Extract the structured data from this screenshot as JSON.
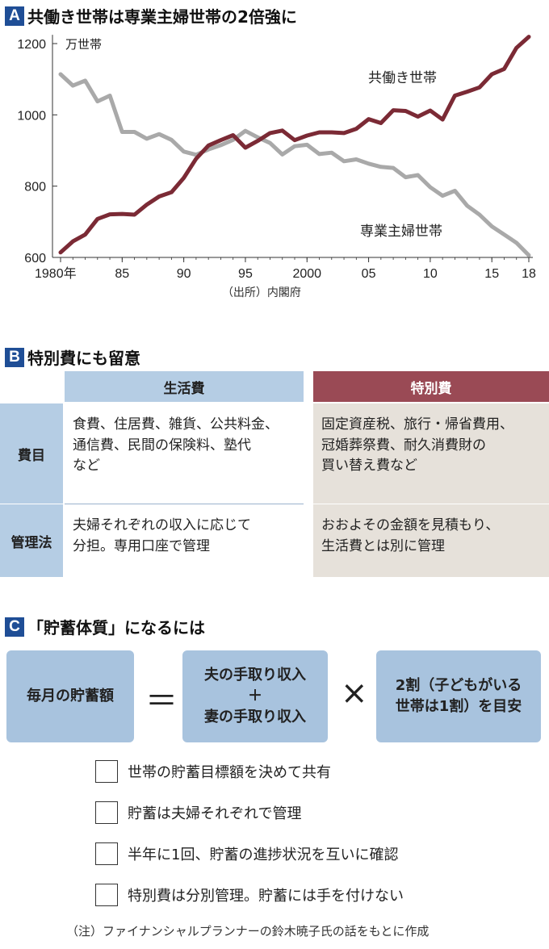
{
  "sections": {
    "a": {
      "badge": "A",
      "title": "共働き世帯は専業主婦世帯の2倍強に"
    },
    "b": {
      "badge": "B",
      "title": "特別費にも留意"
    },
    "c": {
      "badge": "C",
      "title": "「貯蓄体質」になるには"
    }
  },
  "chart_data": {
    "type": "line",
    "title": "共働き世帯は専業主婦世帯の2倍強に",
    "ylabel": "万世帯",
    "ylim": [
      600,
      1220
    ],
    "yticks": [
      600,
      800,
      1000,
      1200
    ],
    "xlim": [
      1980,
      2018
    ],
    "xticks": [
      {
        "value": 1980,
        "label": "1980年"
      },
      {
        "value": 1985,
        "label": "85"
      },
      {
        "value": 1990,
        "label": "90"
      },
      {
        "value": 1995,
        "label": "95"
      },
      {
        "value": 2000,
        "label": "2000"
      },
      {
        "value": 2005,
        "label": "05"
      },
      {
        "value": 2010,
        "label": "10"
      },
      {
        "value": 2015,
        "label": "15"
      },
      {
        "value": 2018,
        "label": "18"
      }
    ],
    "x": [
      1980,
      1981,
      1982,
      1983,
      1984,
      1985,
      1986,
      1987,
      1988,
      1989,
      1990,
      1991,
      1992,
      1993,
      1994,
      1995,
      1996,
      1997,
      1998,
      1999,
      2000,
      2001,
      2002,
      2003,
      2004,
      2005,
      2006,
      2007,
      2008,
      2009,
      2010,
      2011,
      2012,
      2013,
      2014,
      2015,
      2016,
      2017,
      2018
    ],
    "series": [
      {
        "name": "共働き世帯",
        "color": "#7b2a35",
        "values": [
          614,
          645,
          664,
          708,
          721,
          722,
          720,
          748,
          771,
          783,
          823,
          877,
          914,
          929,
          943,
          908,
          927,
          949,
          956,
          929,
          942,
          951,
          951,
          949,
          961,
          988,
          977,
          1013,
          1011,
          995,
          1012,
          987,
          1054,
          1065,
          1077,
          1114,
          1129,
          1188,
          1219
        ]
      },
      {
        "name": "専業主婦世帯",
        "color": "#a9a9a9",
        "values": [
          1114,
          1082,
          1096,
          1038,
          1054,
          952,
          952,
          933,
          946,
          930,
          897,
          888,
          903,
          915,
          930,
          955,
          937,
          921,
          889,
          912,
          916,
          890,
          894,
          870,
          875,
          863,
          854,
          851,
          825,
          831,
          797,
          773,
          787,
          745,
          720,
          687,
          664,
          641,
          606
        ]
      }
    ],
    "grid": false,
    "legend": "inline labels"
  },
  "source_note": "（出所）内閣府",
  "table": {
    "col_living": "生活費",
    "col_special": "特別費",
    "rows": [
      {
        "label": "費目",
        "living": [
          "食費、住居費、雑貨、公共料金、",
          "通信費、民間の保険料、塾代",
          "など"
        ],
        "special": [
          "固定資産税、旅行・帰省費用、",
          "冠婚葬祭費、耐久消費財の",
          "買い替え費など"
        ]
      },
      {
        "label": "管理法",
        "living": [
          "夫婦それぞれの収入に応じて",
          "分担。専用口座で管理"
        ],
        "special": [
          "おおよその金額を見積もり、",
          "生活費とは別に管理"
        ]
      }
    ]
  },
  "formula": {
    "savings": "毎月の貯蓄額",
    "equals": "＝",
    "income_husband": "夫の手取り収入",
    "plus": "＋",
    "income_wife": "妻の手取り収入",
    "times": "×",
    "rate_line1": "2割（子どもがいる",
    "rate_line2": "世帯は1割）を目安"
  },
  "checklist": [
    "世帯の貯蓄目標額を決めて共有",
    "貯蓄は夫婦それぞれで管理",
    "半年に1回、貯蓄の進捗状況を互いに確認",
    "特別費は分別管理。貯蓄には手を付けない"
  ],
  "footnote": "（注）ファイナンシャルプランナーの鈴木暁子氏の話をもとに作成"
}
